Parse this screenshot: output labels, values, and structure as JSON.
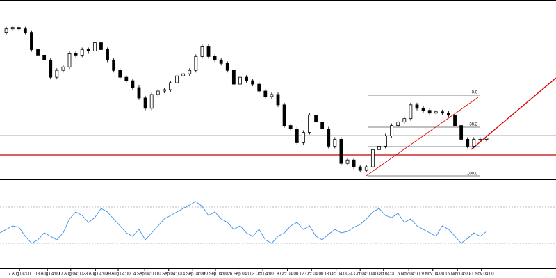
{
  "chart_data": [
    {
      "type": "candlestick",
      "values": [
        213,
        218,
        220,
        218,
        213,
        188,
        180,
        173,
        148,
        158,
        163,
        183,
        180,
        188,
        186,
        198,
        188,
        173,
        158,
        148,
        143,
        133,
        118,
        103,
        123,
        128,
        130,
        140,
        150,
        153,
        158,
        178,
        193,
        178,
        173,
        168,
        158,
        138,
        148,
        143,
        138,
        128,
        120,
        123,
        108,
        78,
        73,
        53,
        68,
        93,
        83,
        73,
        48,
        58,
        23,
        28,
        18,
        13,
        18,
        43,
        48,
        63,
        78,
        83,
        88,
        108,
        103,
        100,
        96,
        98,
        96,
        93,
        78,
        58,
        48,
        58,
        58,
        60
      ],
      "color": "#000000",
      "xlim": [
        0,
        88
      ],
      "ylim": [
        0,
        258
      ],
      "annotations": [
        "0.0",
        "38.2",
        "100.0"
      ]
    },
    {
      "type": "line",
      "values": [
        50,
        55,
        60,
        58,
        45,
        35,
        40,
        50,
        45,
        40,
        50,
        70,
        80,
        75,
        65,
        72,
        85,
        80,
        70,
        60,
        50,
        45,
        55,
        40,
        50,
        60,
        70,
        75,
        80,
        85,
        90,
        95,
        88,
        75,
        80,
        70,
        65,
        55,
        60,
        50,
        45,
        55,
        40,
        35,
        45,
        50,
        60,
        65,
        55,
        60,
        45,
        40,
        48,
        55,
        50,
        52,
        58,
        62,
        70,
        80,
        85,
        75,
        72,
        78,
        65,
        70,
        60,
        55,
        50,
        45,
        60,
        55,
        45,
        35,
        42,
        50,
        45,
        52
      ],
      "color": "#3d8ee6",
      "levels": [
        35,
        87
      ],
      "xlim": [
        0,
        88
      ],
      "ylim": [
        0,
        123
      ],
      "xticks": [
        {
          "value": 3.1,
          "label": "7 Aug 04:00"
        },
        {
          "value": 7.5,
          "label": "13 Aug 04:00"
        },
        {
          "value": 11.2,
          "label": "17 Aug 04:00"
        },
        {
          "value": 15.1,
          "label": "23 Aug 04:00"
        },
        {
          "value": 18.7,
          "label": "29 Aug 04:00"
        },
        {
          "value": 22.9,
          "label": "4 Sep 04:00"
        },
        {
          "value": 26.7,
          "label": "10 Sep 04:00"
        },
        {
          "value": 30.5,
          "label": "14 Sep 04:00"
        },
        {
          "value": 34.1,
          "label": "20 Sep 04:00"
        },
        {
          "value": 38,
          "label": "26 Sep 04:00"
        },
        {
          "value": 41.6,
          "label": "2 Oct 04:00"
        },
        {
          "value": 45.5,
          "label": "8 Oct 04:00"
        },
        {
          "value": 49.3,
          "label": "12 Oct 04:00"
        },
        {
          "value": 53.2,
          "label": "18 Oct 04:00"
        },
        {
          "value": 57,
          "label": "24 Oct 04:00"
        },
        {
          "value": 60.7,
          "label": "30 Oct 04:00"
        },
        {
          "value": 64.7,
          "label": "5 Nov 04:00"
        },
        {
          "value": 68.5,
          "label": "9 Nov 04:00"
        },
        {
          "value": 72.4,
          "label": "15 Nov 04:00"
        },
        {
          "value": 76.2,
          "label": "21 Nov 04:00"
        }
      ]
    }
  ]
}
